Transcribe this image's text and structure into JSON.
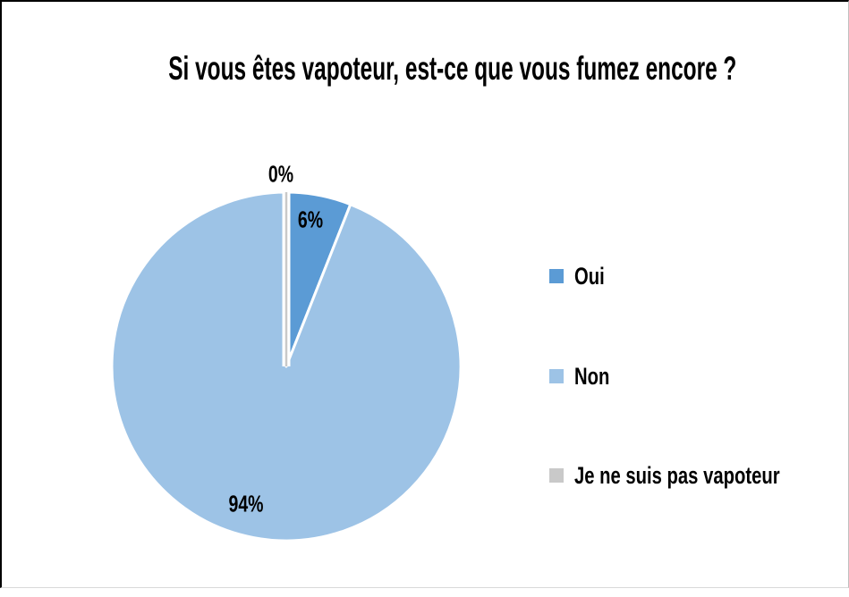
{
  "chart_data": {
    "type": "pie",
    "title": "Si vous êtes vapoteur, est-ce que vous fumez encore ?",
    "categories": [
      "Oui",
      "Non",
      "Je ne suis pas vapoteur"
    ],
    "values": [
      6,
      94,
      0
    ],
    "data_labels": [
      "6%",
      "94%",
      "0%"
    ],
    "colors": [
      "#5B9BD5",
      "#9DC3E6",
      "#C9C9C9"
    ],
    "slice_border_color": "#FFFFFF",
    "background_color": "#FFFFFF",
    "legend_position": "right",
    "start_angle_deg": 0,
    "direction": "clockwise"
  },
  "legend": {
    "items": [
      {
        "label": "Oui",
        "color": "#5B9BD5"
      },
      {
        "label": "Non",
        "color": "#9DC3E6"
      },
      {
        "label": "Je ne suis pas vapoteur",
        "color": "#C9C9C9"
      }
    ]
  }
}
